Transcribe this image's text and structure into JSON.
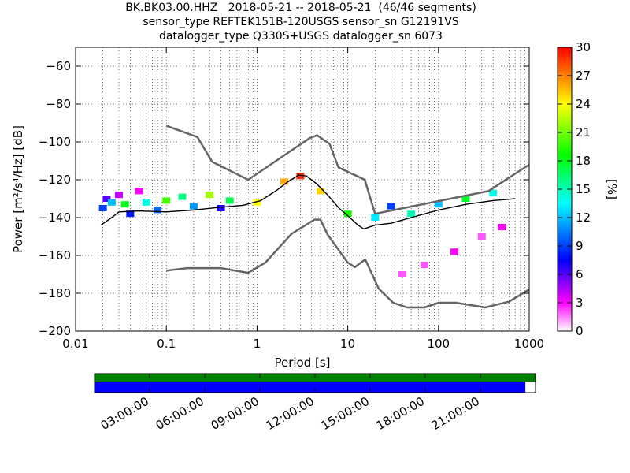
{
  "header": {
    "title_lines": [
      "BK.BK03.00.HHZ   2018-05-21 -- 2018-05-21  (46/46 segments)",
      "sensor_type REFTEK151B-120USGS sensor_sn G12191VS",
      "datalogger_type Q330S+USGS datalogger_sn 6073"
    ]
  },
  "chart_data": {
    "type": "heatmap",
    "title": "BK.BK03.00.HHZ   2018-05-21 -- 2018-05-21  (46/46 segments)",
    "xlabel": "Period [s]",
    "ylabel": "Power [m²/s⁴/Hz] [dB]",
    "xscale": "log",
    "xlim": [
      0.01,
      1000
    ],
    "ylim": [
      -200,
      -50
    ],
    "x_ticks": [
      0.01,
      0.1,
      1,
      10,
      100,
      1000
    ],
    "x_tick_labels": [
      "0.01",
      "0.1",
      "1",
      "10",
      "100",
      "1000"
    ],
    "y_ticks": [
      -200,
      -180,
      -160,
      -140,
      -120,
      -100,
      -80,
      -60
    ],
    "y_tick_labels": [
      "−200",
      "−180",
      "−160",
      "−140",
      "−120",
      "−100",
      "−80",
      "−60"
    ],
    "grid": true,
    "colorbar": {
      "label": "[%]",
      "range": [
        0,
        30
      ],
      "ticks": [
        0,
        3,
        6,
        9,
        12,
        15,
        18,
        21,
        24,
        27,
        30
      ],
      "colors": [
        "#ffffff",
        "#ff00ff",
        "#0000ff",
        "#00ffff",
        "#00ff00",
        "#ffff00",
        "#ff0000"
      ]
    },
    "new_high_noise_model": [
      [
        0.1,
        -91.5
      ],
      [
        0.22,
        -97.4
      ],
      [
        0.32,
        -110.5
      ],
      [
        0.8,
        -120
      ],
      [
        3.8,
        -98
      ],
      [
        4.6,
        -96.5
      ],
      [
        6.3,
        -101
      ],
      [
        7.9,
        -113.5
      ],
      [
        15.4,
        -120
      ],
      [
        20,
        -138
      ],
      [
        354.8,
        -126
      ],
      [
        1000,
        -112
      ]
    ],
    "new_low_noise_model": [
      [
        0.1,
        -168
      ],
      [
        0.17,
        -166.7
      ],
      [
        0.4,
        -166.7
      ],
      [
        0.8,
        -169.2
      ],
      [
        1.24,
        -163.7
      ],
      [
        2.4,
        -148.6
      ],
      [
        4.3,
        -141.1
      ],
      [
        5,
        -141.1
      ],
      [
        6,
        -149
      ],
      [
        10,
        -163.8
      ],
      [
        12,
        -166.2
      ],
      [
        15.6,
        -162.1
      ],
      [
        21.9,
        -177.5
      ],
      [
        31.6,
        -185
      ],
      [
        45,
        -187.5
      ],
      [
        70,
        -187.5
      ],
      [
        101,
        -185
      ],
      [
        154,
        -185
      ],
      [
        328,
        -187.5
      ],
      [
        600,
        -184.4
      ],
      [
        1000,
        -178
      ]
    ],
    "mode_curve": [
      [
        0.019,
        -144
      ],
      [
        0.025,
        -140
      ],
      [
        0.03,
        -137
      ],
      [
        0.05,
        -136.5
      ],
      [
        0.1,
        -137
      ],
      [
        0.2,
        -136
      ],
      [
        0.4,
        -134.5
      ],
      [
        0.7,
        -133.5
      ],
      [
        1.1,
        -131
      ],
      [
        1.6,
        -126
      ],
      [
        2.2,
        -121
      ],
      [
        2.9,
        -117.5
      ],
      [
        3.5,
        -118
      ],
      [
        4.5,
        -122
      ],
      [
        6,
        -128
      ],
      [
        8,
        -135
      ],
      [
        10,
        -139
      ],
      [
        13,
        -144
      ],
      [
        15,
        -146
      ],
      [
        20,
        -144
      ],
      [
        30,
        -143
      ],
      [
        50,
        -140
      ],
      [
        100,
        -136
      ],
      [
        200,
        -133
      ],
      [
        400,
        -131
      ],
      [
        700,
        -130
      ]
    ],
    "heatmap_cells": [
      {
        "x": 0.02,
        "y": -135,
        "pct": 9
      },
      {
        "x": 0.022,
        "y": -130,
        "pct": 6
      },
      {
        "x": 0.025,
        "y": -132,
        "pct": 12
      },
      {
        "x": 0.03,
        "y": -128,
        "pct": 4
      },
      {
        "x": 0.035,
        "y": -133,
        "pct": 18
      },
      {
        "x": 0.04,
        "y": -138,
        "pct": 8
      },
      {
        "x": 0.05,
        "y": -126,
        "pct": 3
      },
      {
        "x": 0.06,
        "y": -132,
        "pct": 14
      },
      {
        "x": 0.08,
        "y": -136,
        "pct": 10
      },
      {
        "x": 0.1,
        "y": -131,
        "pct": 20
      },
      {
        "x": 0.15,
        "y": -129,
        "pct": 16
      },
      {
        "x": 0.2,
        "y": -134,
        "pct": 11
      },
      {
        "x": 0.3,
        "y": -128,
        "pct": 22
      },
      {
        "x": 0.4,
        "y": -135,
        "pct": 7
      },
      {
        "x": 0.5,
        "y": -131,
        "pct": 17
      },
      {
        "x": 1,
        "y": -132,
        "pct": 24
      },
      {
        "x": 2,
        "y": -121,
        "pct": 26
      },
      {
        "x": 3,
        "y": -118,
        "pct": 29
      },
      {
        "x": 5,
        "y": -126,
        "pct": 25
      },
      {
        "x": 10,
        "y": -138,
        "pct": 19
      },
      {
        "x": 20,
        "y": -140,
        "pct": 13
      },
      {
        "x": 30,
        "y": -134,
        "pct": 9
      },
      {
        "x": 50,
        "y": -138,
        "pct": 15
      },
      {
        "x": 100,
        "y": -133,
        "pct": 12
      },
      {
        "x": 200,
        "y": -130,
        "pct": 18
      },
      {
        "x": 400,
        "y": -127,
        "pct": 14
      },
      {
        "x": 40,
        "y": -170,
        "pct": 2
      },
      {
        "x": 70,
        "y": -165,
        "pct": 2
      },
      {
        "x": 150,
        "y": -158,
        "pct": 3
      },
      {
        "x": 300,
        "y": -150,
        "pct": 2
      },
      {
        "x": 500,
        "y": -145,
        "pct": 3
      }
    ],
    "availability": {
      "tick_labels": [
        "03:00:00",
        "06:00:00",
        "09:00:00",
        "12:00:00",
        "15:00:00",
        "18:00:00",
        "21:00:00"
      ],
      "data_coverage": 0.977,
      "colors": {
        "present": "#0000ff",
        "segment": "#008000"
      }
    }
  }
}
